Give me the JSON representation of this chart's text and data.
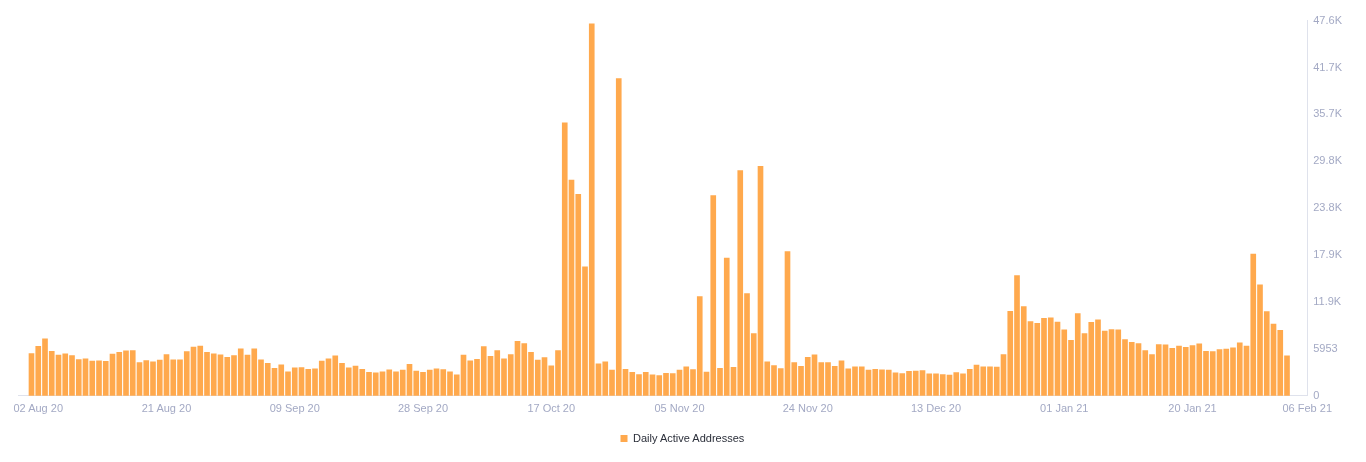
{
  "chart_data": {
    "type": "bar",
    "x": [
      "2020-08-01",
      "2020-08-02",
      "2020-08-03",
      "2020-08-04",
      "2020-08-05",
      "2020-08-06",
      "2020-08-07",
      "2020-08-08",
      "2020-08-09",
      "2020-08-10",
      "2020-08-11",
      "2020-08-12",
      "2020-08-13",
      "2020-08-14",
      "2020-08-15",
      "2020-08-16",
      "2020-08-17",
      "2020-08-18",
      "2020-08-19",
      "2020-08-20",
      "2020-08-21",
      "2020-08-22",
      "2020-08-23",
      "2020-08-24",
      "2020-08-25",
      "2020-08-26",
      "2020-08-27",
      "2020-08-28",
      "2020-08-29",
      "2020-08-30",
      "2020-08-31",
      "2020-09-01",
      "2020-09-02",
      "2020-09-03",
      "2020-09-04",
      "2020-09-05",
      "2020-09-06",
      "2020-09-07",
      "2020-09-08",
      "2020-09-09",
      "2020-09-10",
      "2020-09-11",
      "2020-09-12",
      "2020-09-13",
      "2020-09-14",
      "2020-09-15",
      "2020-09-16",
      "2020-09-17",
      "2020-09-18",
      "2020-09-19",
      "2020-09-20",
      "2020-09-21",
      "2020-09-22",
      "2020-09-23",
      "2020-09-24",
      "2020-09-25",
      "2020-09-26",
      "2020-09-27",
      "2020-09-28",
      "2020-09-29",
      "2020-09-30",
      "2020-10-01",
      "2020-10-02",
      "2020-10-03",
      "2020-10-04",
      "2020-10-05",
      "2020-10-06",
      "2020-10-07",
      "2020-10-08",
      "2020-10-09",
      "2020-10-10",
      "2020-10-11",
      "2020-10-12",
      "2020-10-13",
      "2020-10-14",
      "2020-10-15",
      "2020-10-16",
      "2020-10-17",
      "2020-10-18",
      "2020-10-19",
      "2020-10-20",
      "2020-10-21",
      "2020-10-22",
      "2020-10-23",
      "2020-10-24",
      "2020-10-25",
      "2020-10-26",
      "2020-10-27",
      "2020-10-28",
      "2020-10-29",
      "2020-10-30",
      "2020-10-31",
      "2020-11-01",
      "2020-11-02",
      "2020-11-03",
      "2020-11-04",
      "2020-11-05",
      "2020-11-06",
      "2020-11-07",
      "2020-11-08",
      "2020-11-09",
      "2020-11-10",
      "2020-11-11",
      "2020-11-12",
      "2020-11-13",
      "2020-11-14",
      "2020-11-15",
      "2020-11-16",
      "2020-11-17",
      "2020-11-18",
      "2020-11-19",
      "2020-11-20",
      "2020-11-21",
      "2020-11-22",
      "2020-11-23",
      "2020-11-24",
      "2020-11-25",
      "2020-11-26",
      "2020-11-27",
      "2020-11-28",
      "2020-11-29",
      "2020-11-30",
      "2020-12-01",
      "2020-12-02",
      "2020-12-03",
      "2020-12-04",
      "2020-12-05",
      "2020-12-06",
      "2020-12-07",
      "2020-12-08",
      "2020-12-09",
      "2020-12-10",
      "2020-12-11",
      "2020-12-12",
      "2020-12-13",
      "2020-12-14",
      "2020-12-15",
      "2020-12-16",
      "2020-12-17",
      "2020-12-18",
      "2020-12-19",
      "2020-12-20",
      "2020-12-21",
      "2020-12-22",
      "2020-12-23",
      "2020-12-24",
      "2020-12-25",
      "2020-12-26",
      "2020-12-27",
      "2020-12-28",
      "2020-12-29",
      "2020-12-30",
      "2020-12-31",
      "2021-01-01",
      "2021-01-02",
      "2021-01-03",
      "2021-01-04",
      "2021-01-05",
      "2021-01-06",
      "2021-01-07",
      "2021-01-08",
      "2021-01-09",
      "2021-01-10",
      "2021-01-11",
      "2021-01-12",
      "2021-01-13",
      "2021-01-14",
      "2021-01-15",
      "2021-01-16",
      "2021-01-17",
      "2021-01-18",
      "2021-01-19",
      "2021-01-20",
      "2021-01-21",
      "2021-01-22",
      "2021-01-23",
      "2021-01-24",
      "2021-01-25",
      "2021-01-26",
      "2021-01-27",
      "2021-01-28",
      "2021-01-29",
      "2021-01-30",
      "2021-01-31",
      "2021-02-01",
      "2021-02-02",
      "2021-02-03"
    ],
    "series": [
      {
        "name": "Daily Active Addresses",
        "color": "#ffa94d",
        "values": [
          5360,
          6270,
          7225,
          5640,
          5160,
          5320,
          5120,
          4600,
          4685,
          4410,
          4445,
          4365,
          5280,
          5520,
          5715,
          5755,
          4210,
          4485,
          4325,
          4525,
          5240,
          4565,
          4565,
          5600,
          6195,
          6310,
          5520,
          5320,
          5200,
          4885,
          5120,
          5955,
          5160,
          5955,
          4565,
          4130,
          3495,
          3930,
          3055,
          3535,
          3575,
          3375,
          3415,
          4405,
          4685,
          5080,
          4130,
          3535,
          3770,
          3375,
          2980,
          2900,
          3055,
          3295,
          3055,
          3255,
          4010,
          3135,
          2980,
          3255,
          3415,
          3335,
          3055,
          2660,
          5160,
          4445,
          4645,
          6235,
          5000,
          5755,
          4685,
          5240,
          6910,
          6630,
          5520,
          4525,
          4845,
          3810,
          5755,
          34660,
          27390,
          25570,
          16360,
          47200,
          4050,
          4325,
          3255,
          40260,
          3375,
          2980,
          2700,
          2980,
          2660,
          2580,
          2860,
          2820,
          3255,
          3690,
          3335,
          12585,
          3015,
          25410,
          3495,
          17470,
          3610,
          28585,
          12980,
          7900,
          29140,
          4325,
          3850,
          3455,
          18300,
          4210,
          3730,
          4885,
          5200,
          4210,
          4210,
          3730,
          4445,
          3415,
          3690,
          3690,
          3255,
          3375,
          3295,
          3255,
          2900,
          2820,
          3095,
          3135,
          3215,
          2780,
          2780,
          2700,
          2620,
          2940,
          2780,
          3375,
          3890,
          3690,
          3690,
          3650,
          5240,
          10720,
          15245,
          11315,
          9410,
          9210,
          9845,
          9885,
          9370,
          8375,
          7025,
          10440,
          7900,
          9330,
          9645,
          8220,
          8415,
          8375,
          7145,
          6790,
          6630,
          5755,
          5240,
          6510,
          6470,
          6035,
          6310,
          6155,
          6390,
          6590,
          5635,
          5600,
          5875,
          5915,
          6075,
          6710,
          6310,
          17985,
          14095,
          10680,
          9090,
          8295,
          5080
        ]
      }
    ],
    "xlim": [
      "2020-07-30",
      "2021-02-06"
    ],
    "xticks": [
      {
        "value": "2020-08-02",
        "label": "02 Aug 20"
      },
      {
        "value": "2020-08-21",
        "label": "21 Aug 20"
      },
      {
        "value": "2020-09-09",
        "label": "09 Sep 20"
      },
      {
        "value": "2020-09-28",
        "label": "28 Sep 20"
      },
      {
        "value": "2020-10-17",
        "label": "17 Oct 20"
      },
      {
        "value": "2020-11-05",
        "label": "05 Nov 20"
      },
      {
        "value": "2020-11-24",
        "label": "24 Nov 20"
      },
      {
        "value": "2020-12-13",
        "label": "13 Dec 20"
      },
      {
        "value": "2021-01-01",
        "label": "01 Jan 21"
      },
      {
        "value": "2021-01-20",
        "label": "20 Jan 21"
      },
      {
        "value": "2021-02-06",
        "label": "06 Feb 21"
      }
    ],
    "ylim": [
      0,
      47624
    ],
    "yticks": [
      0,
      5953,
      {
        "value": 11906,
        "label": "11.9K"
      },
      {
        "value": 17859,
        "label": "17.9K"
      },
      {
        "value": 23812,
        "label": "23.8K"
      },
      {
        "value": 29765,
        "label": "29.8K"
      },
      {
        "value": 35718,
        "label": "35.7K"
      },
      {
        "value": 41671,
        "label": "41.7K"
      },
      {
        "value": 47624,
        "label": "47.6K"
      }
    ],
    "legend": "bottom"
  }
}
